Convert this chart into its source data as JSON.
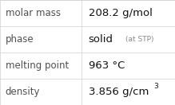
{
  "rows": [
    {
      "label": "molar mass",
      "value_plain": "208.2 g/mol",
      "type": "plain"
    },
    {
      "label": "phase",
      "value_plain": "solid",
      "type": "phase",
      "suffix": "(at STP)"
    },
    {
      "label": "melting point",
      "value_plain": "963 °C",
      "type": "plain"
    },
    {
      "label": "density",
      "value_plain": "3.856 g/cm",
      "type": "super",
      "super": "3"
    }
  ],
  "col_split": 0.465,
  "background": "#ffffff",
  "border_color": "#d0d0d0",
  "label_color": "#505050",
  "value_color": "#111111",
  "small_color": "#888888",
  "font_size_label": 8.5,
  "font_size_value": 9.5,
  "font_size_small": 6.5,
  "font_size_super": 6.5
}
